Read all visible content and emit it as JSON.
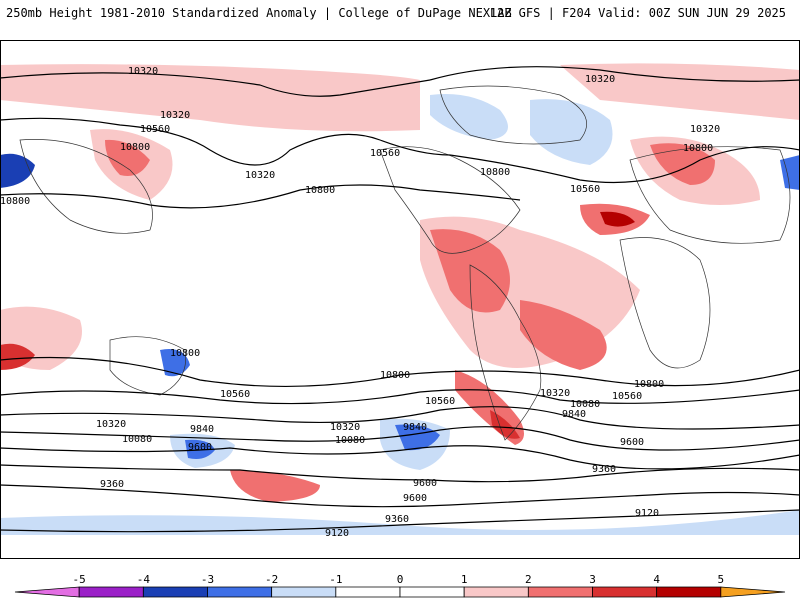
{
  "header": {
    "title_left": "250mb Height 1981-2010 Standardized Anomaly | College of DuPage NEXLAB",
    "title_right": "12Z GFS | F204 Valid: 00Z SUN JUN 29 2025"
  },
  "colors": {
    "neg5": "#e36ee3",
    "neg4": "#9b20c8",
    "neg3": "#1a3fb4",
    "neg2": "#3e6fe6",
    "neg1": "#c9ddf7",
    "zero": "#ffffff",
    "pos1": "#f9c8c8",
    "pos2": "#f07070",
    "pos3": "#d83030",
    "pos4": "#b40000",
    "pos5": "#f5a020",
    "contour": "#000000",
    "coast": "#333333"
  },
  "colorbar": {
    "ticks": [
      "-5",
      "-4",
      "-3",
      "-2",
      "-1",
      "0",
      "1",
      "2",
      "3",
      "4",
      "5"
    ],
    "values": [
      -5,
      -4,
      -3,
      -2,
      -1,
      0,
      1,
      2,
      3,
      4,
      5
    ]
  },
  "contour_labels": [
    {
      "text": "10320"
    },
    {
      "text": "10320"
    },
    {
      "text": "10560"
    },
    {
      "text": "10800"
    },
    {
      "text": "10320"
    },
    {
      "text": "10800"
    },
    {
      "text": "10560"
    },
    {
      "text": "10800"
    },
    {
      "text": "10560"
    },
    {
      "text": "10320"
    },
    {
      "text": "10800"
    },
    {
      "text": "10800"
    },
    {
      "text": "10320"
    },
    {
      "text": "10800"
    },
    {
      "text": "10560"
    },
    {
      "text": "10800"
    },
    {
      "text": "10560"
    },
    {
      "text": "10320"
    },
    {
      "text": "10080"
    },
    {
      "text": "10320"
    },
    {
      "text": "10080"
    },
    {
      "text": "9840"
    },
    {
      "text": "9600"
    },
    {
      "text": "9840"
    },
    {
      "text": "10320"
    },
    {
      "text": "10080"
    },
    {
      "text": "10560"
    },
    {
      "text": "9840"
    },
    {
      "text": "10800"
    },
    {
      "text": "9600"
    },
    {
      "text": "9360"
    },
    {
      "text": "9600"
    },
    {
      "text": "9600"
    },
    {
      "text": "9360"
    },
    {
      "text": "9360"
    },
    {
      "text": "9120"
    },
    {
      "text": "9120"
    }
  ]
}
